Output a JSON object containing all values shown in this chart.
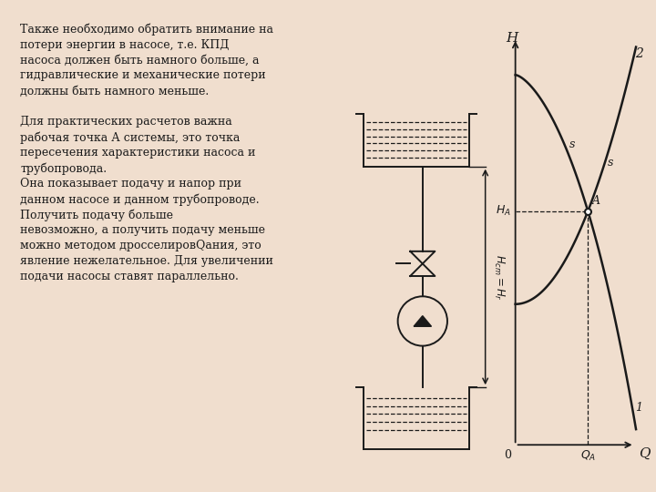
{
  "background_color": "#f0dece",
  "panel_color": "#ffffff",
  "text_color": "#1a1a1a",
  "text_lines": [
    "Также необходимо обратить внимание на",
    "потери энергии в насосе, т.е. КПД",
    "насоса должен быть намного больше, а",
    "гидравлические и механические потери",
    "должны быть намного меньше.",
    "",
    "Для практических расчетов важна",
    "рабочая точка А системы, это точка",
    "пересечения характеристики насоса и",
    "трубопровода.",
    "Она показывает подачу и напор при",
    "данном насосе и данном трубопроводе.",
    "Получить подачу больше",
    "невозможно, а получить подачу меньше",
    "можно методом дросселировQания, это",
    "явление нежелательное. Для увеличении",
    "подачи насосы ставят параллельно."
  ],
  "line_color": "#1a1a1a"
}
